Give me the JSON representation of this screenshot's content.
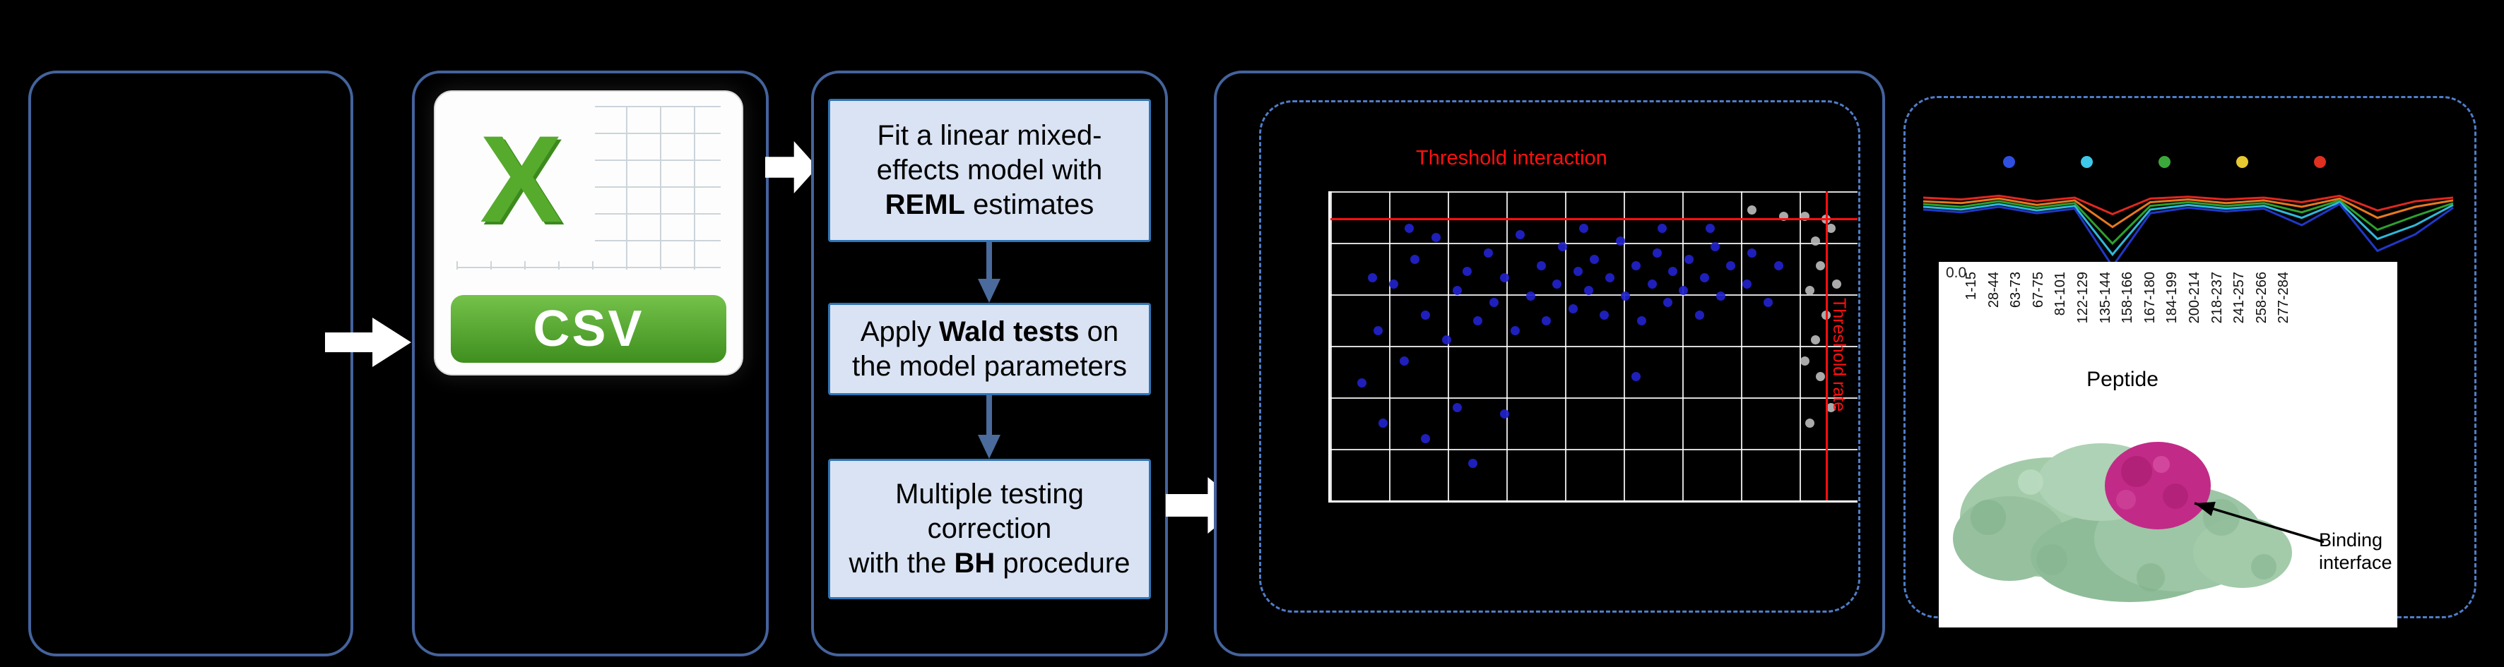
{
  "csv": {
    "label": "CSV"
  },
  "workflow": {
    "box1": {
      "pre": "Fit a linear mixed-\neffects model with\n",
      "bold": "REML",
      "post": " estimates"
    },
    "box2": {
      "pre": "Apply ",
      "bold": "Wald tests",
      "post": " on\nthe model parameters"
    },
    "box3": {
      "pre": "Multiple testing\ncorrection\nwith the ",
      "bold": "BH",
      "post": " procedure"
    }
  },
  "epitope": {
    "annotation": "Binding\ninterface"
  },
  "colors": {
    "panel_border": "#44639c",
    "dashed_border": "#4f7dc8",
    "box_fill": "#dae3f3",
    "box_border": "#2e75b6",
    "threshold_red": "#ff1010",
    "csv_green": "#56ab2d",
    "protein_green": "#9cc6a5",
    "interface_magenta": "#c22a88",
    "scatter_blue": "#2222cc",
    "scatter_gray": "#b8b8b8"
  },
  "icons": {
    "flow_arrow": "right-block-arrow",
    "step_arrow": "down-arrow",
    "csv_logo": "excel-x-spreadsheet"
  },
  "chart_data": [
    {
      "type": "scatter",
      "title": "Threshold interaction",
      "side_label": "Threshold rate",
      "grid": true,
      "thresholds": {
        "y_pct_from_bottom": 91,
        "x_pct": 94.2
      },
      "series": [
        {
          "name": "interaction-points",
          "color": "#2222cc",
          "points": [
            [
              6,
              38
            ],
            [
              8,
              72
            ],
            [
              9,
              55
            ],
            [
              10,
              25
            ],
            [
              12,
              70
            ],
            [
              14,
              45
            ],
            [
              15,
              88
            ],
            [
              16,
              78
            ],
            [
              18,
              60
            ],
            [
              18,
              20
            ],
            [
              20,
              85
            ],
            [
              22,
              52
            ],
            [
              24,
              68
            ],
            [
              24,
              30
            ],
            [
              26,
              74
            ],
            [
              27,
              12
            ],
            [
              28,
              58
            ],
            [
              30,
              80
            ],
            [
              31,
              64
            ],
            [
              33,
              72
            ],
            [
              33,
              28
            ],
            [
              35,
              55
            ],
            [
              36,
              86
            ],
            [
              38,
              66
            ],
            [
              40,
              76
            ],
            [
              41,
              58
            ],
            [
              43,
              70
            ],
            [
              44,
              82
            ],
            [
              46,
              62
            ],
            [
              47,
              74
            ],
            [
              48,
              88
            ],
            [
              49,
              68
            ],
            [
              50,
              78
            ],
            [
              52,
              60
            ],
            [
              53,
              72
            ],
            [
              55,
              84
            ],
            [
              56,
              66
            ],
            [
              58,
              76
            ],
            [
              58,
              40
            ],
            [
              59,
              58
            ],
            [
              61,
              70
            ],
            [
              62,
              80
            ],
            [
              63,
              88
            ],
            [
              64,
              64
            ],
            [
              65,
              74
            ],
            [
              67,
              68
            ],
            [
              68,
              78
            ],
            [
              70,
              60
            ],
            [
              71,
              72
            ],
            [
              72,
              88
            ],
            [
              73,
              82
            ],
            [
              74,
              66
            ],
            [
              76,
              76
            ],
            [
              79,
              70
            ],
            [
              80,
              80
            ],
            [
              83,
              64
            ],
            [
              85,
              76
            ]
          ]
        },
        {
          "name": "non-significant-points",
          "color": "#b8b8b8",
          "points": [
            [
              80,
              94
            ],
            [
              86,
              92
            ],
            [
              90,
              92
            ],
            [
              92,
              84
            ],
            [
              93,
              76
            ],
            [
              91,
              68
            ],
            [
              94,
              60
            ],
            [
              92,
              52
            ],
            [
              95,
              88
            ],
            [
              96,
              70
            ],
            [
              90,
              45
            ],
            [
              93,
              40
            ],
            [
              95,
              30
            ],
            [
              91,
              25
            ],
            [
              94,
              91
            ]
          ]
        }
      ]
    },
    {
      "type": "line",
      "xlabel": "Peptide",
      "y_tick": "0.0",
      "categories": [
        "1-15",
        "28-44",
        "63-73",
        "67-75",
        "81-101",
        "122-129",
        "135-144",
        "158-166",
        "167-180",
        "184-199",
        "200-214",
        "218-237",
        "241-257",
        "258-266",
        "277-284"
      ],
      "legend_dot_colors": [
        "#2e4fe0",
        "#3fc8e8",
        "#3aa83a",
        "#e8c832",
        "#e03020"
      ],
      "series": [
        {
          "name": "series-red",
          "color": "#e02820",
          "values": [
            80,
            78,
            82,
            76,
            80,
            62,
            79,
            81,
            78,
            80,
            75,
            82,
            66,
            76,
            80
          ]
        },
        {
          "name": "series-orange",
          "color": "#e87820",
          "values": [
            76,
            74,
            79,
            72,
            77,
            48,
            75,
            78,
            74,
            77,
            70,
            79,
            58,
            70,
            77
          ]
        },
        {
          "name": "series-green",
          "color": "#2ea02e",
          "values": [
            73,
            70,
            76,
            69,
            74,
            30,
            71,
            75,
            71,
            74,
            64,
            77,
            45,
            60,
            74
          ]
        },
        {
          "name": "series-cyan",
          "color": "#30b8d8",
          "values": [
            70,
            67,
            73,
            66,
            71,
            18,
            67,
            72,
            68,
            71,
            58,
            75,
            35,
            50,
            72
          ]
        },
        {
          "name": "series-blue",
          "color": "#2038c8",
          "values": [
            67,
            64,
            70,
            63,
            68,
            5,
            63,
            69,
            65,
            68,
            50,
            73,
            22,
            40,
            69
          ]
        }
      ]
    }
  ]
}
